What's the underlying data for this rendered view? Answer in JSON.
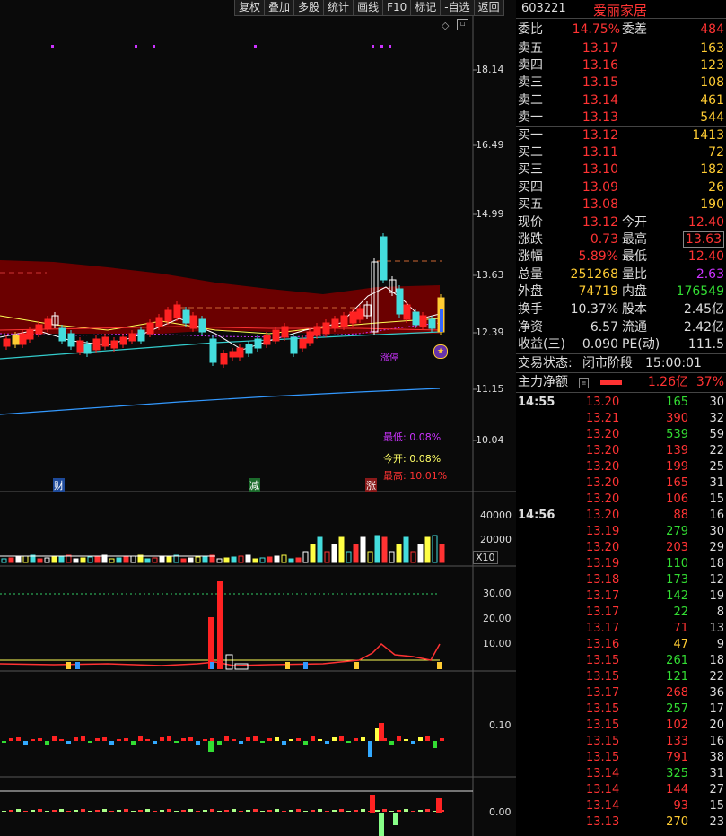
{
  "toolbar": [
    "复权",
    "叠加",
    "多股",
    "统计",
    "画线",
    "F10",
    "标记",
    "-自选",
    "返回"
  ],
  "stock": {
    "code": "603221",
    "name": "爱丽家居"
  },
  "order_ratio": {
    "label1": "委比",
    "value1": "14.75%",
    "label2": "委差",
    "value2": "484"
  },
  "asks": [
    {
      "label": "卖五",
      "price": "13.17",
      "vol": "163"
    },
    {
      "label": "卖四",
      "price": "13.16",
      "vol": "123"
    },
    {
      "label": "卖三",
      "price": "13.15",
      "vol": "108"
    },
    {
      "label": "卖二",
      "price": "13.14",
      "vol": "461"
    },
    {
      "label": "卖一",
      "price": "13.13",
      "vol": "544"
    }
  ],
  "bids": [
    {
      "label": "买一",
      "price": "13.12",
      "vol": "1413"
    },
    {
      "label": "买二",
      "price": "13.11",
      "vol": "72"
    },
    {
      "label": "买三",
      "price": "13.10",
      "vol": "182"
    },
    {
      "label": "买四",
      "price": "13.09",
      "vol": "26"
    },
    {
      "label": "买五",
      "price": "13.08",
      "vol": "190"
    }
  ],
  "quote": [
    {
      "l1": "现价",
      "v1": "13.12",
      "l2": "今开",
      "v2": "12.40"
    },
    {
      "l1": "涨跌",
      "v1": "0.73",
      "l2": "最高",
      "v2": "13.63"
    },
    {
      "l1": "涨幅",
      "v1": "5.89%",
      "l2": "最低",
      "v2": "12.40"
    },
    {
      "l1": "总量",
      "v1": "251268",
      "l2": "量比",
      "v2": "2.63"
    },
    {
      "l1": "外盘",
      "v1": "74719",
      "l2": "内盘",
      "v2": "176549"
    }
  ],
  "fund": [
    {
      "l1": "换手",
      "v1": "10.37%",
      "l2": "股本",
      "v2": "2.45亿"
    },
    {
      "l1": "净资",
      "v1": "6.57",
      "l2": "流通",
      "v2": "2.42亿"
    },
    {
      "l1": "收益(三)",
      "v1": "0.090",
      "l2": "PE(动)",
      "v2": "111.5"
    }
  ],
  "status": {
    "label": "交易状态:",
    "value": "闭市阶段",
    "time": "15:00:01"
  },
  "mainflow": {
    "label": "主力净额",
    "value": "1.26亿",
    "pct": "37%"
  },
  "trades": [
    {
      "t": "14:55",
      "p": "13.20",
      "v": "165",
      "d": "g",
      "n": "30"
    },
    {
      "t": "",
      "p": "13.21",
      "v": "390",
      "d": "r",
      "n": "32"
    },
    {
      "t": "",
      "p": "13.20",
      "v": "539",
      "d": "g",
      "n": "59"
    },
    {
      "t": "",
      "p": "13.20",
      "v": "139",
      "d": "r",
      "n": "22"
    },
    {
      "t": "",
      "p": "13.20",
      "v": "199",
      "d": "r",
      "n": "25"
    },
    {
      "t": "",
      "p": "13.20",
      "v": "165",
      "d": "r",
      "n": "31"
    },
    {
      "t": "",
      "p": "13.20",
      "v": "106",
      "d": "r",
      "n": "15"
    },
    {
      "t": "14:56",
      "p": "13.20",
      "v": "88",
      "d": "r",
      "n": "16"
    },
    {
      "t": "",
      "p": "13.19",
      "v": "279",
      "d": "g",
      "n": "30"
    },
    {
      "t": "",
      "p": "13.20",
      "v": "203",
      "d": "r",
      "n": "29"
    },
    {
      "t": "",
      "p": "13.19",
      "v": "110",
      "d": "g",
      "n": "18"
    },
    {
      "t": "",
      "p": "13.18",
      "v": "173",
      "d": "g",
      "n": "12"
    },
    {
      "t": "",
      "p": "13.17",
      "v": "142",
      "d": "g",
      "n": "19"
    },
    {
      "t": "",
      "p": "13.17",
      "v": "22",
      "d": "g",
      "n": "8"
    },
    {
      "t": "",
      "p": "13.17",
      "v": "71",
      "d": "r",
      "n": "13"
    },
    {
      "t": "",
      "p": "13.16",
      "v": "47",
      "d": "y",
      "n": "9"
    },
    {
      "t": "",
      "p": "13.15",
      "v": "261",
      "d": "g",
      "n": "18"
    },
    {
      "t": "",
      "p": "13.15",
      "v": "121",
      "d": "g",
      "n": "22"
    },
    {
      "t": "",
      "p": "13.17",
      "v": "268",
      "d": "r",
      "n": "36"
    },
    {
      "t": "",
      "p": "13.15",
      "v": "257",
      "d": "g",
      "n": "17"
    },
    {
      "t": "",
      "p": "13.15",
      "v": "102",
      "d": "r",
      "n": "20"
    },
    {
      "t": "",
      "p": "13.15",
      "v": "133",
      "d": "r",
      "n": "16"
    },
    {
      "t": "",
      "p": "13.15",
      "v": "791",
      "d": "r",
      "n": "38"
    },
    {
      "t": "",
      "p": "13.14",
      "v": "325",
      "d": "g",
      "n": "31"
    },
    {
      "t": "",
      "p": "13.14",
      "v": "144",
      "d": "r",
      "n": "27"
    },
    {
      "t": "",
      "p": "13.14",
      "v": "93",
      "d": "r",
      "n": "15"
    },
    {
      "t": "",
      "p": "13.13",
      "v": "270",
      "d": "y",
      "n": "23"
    }
  ],
  "axis": {
    "price": [
      "18.14",
      "16.49",
      "14.99",
      "13.63",
      "12.39",
      "11.15",
      "10.04"
    ],
    "volume": [
      "40000",
      "20000",
      "X10"
    ],
    "ind1": [
      "30.00",
      "20.00",
      "10.00"
    ],
    "ind2": [
      "0.10"
    ],
    "ind3": [
      "0.00"
    ]
  },
  "annot": {
    "low": "最低: 0.08%",
    "open": "今开: 0.08%",
    "high": "最高: 10.01%",
    "cai": "财",
    "jian": "减",
    "zhang": "涨",
    "zhangting": "涨停"
  },
  "chart_data": {
    "type": "candlestick",
    "price_axis": [
      18.14,
      16.49,
      14.99,
      13.63,
      12.39,
      11.15,
      10.04
    ],
    "last_candles": [
      {
        "o": 12.4,
        "h": 13.63,
        "l": 12.4,
        "c": 13.12
      }
    ],
    "volume_axis": [
      40000,
      20000
    ]
  }
}
